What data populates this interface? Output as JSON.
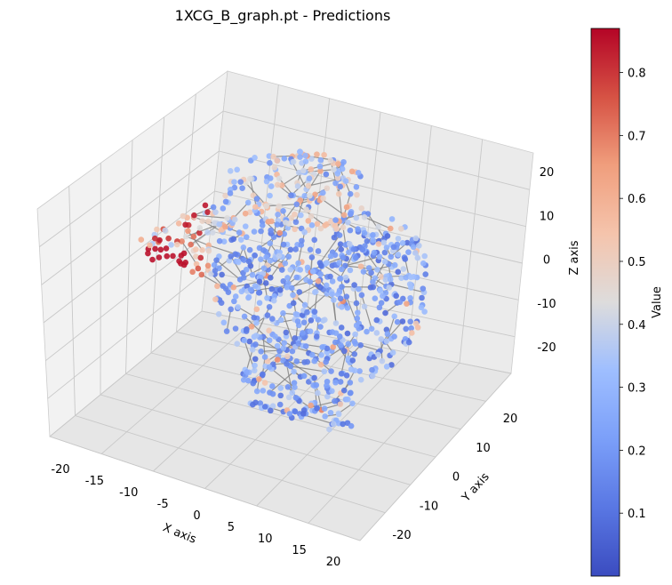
{
  "chart_data": {
    "type": "scatter",
    "projection": "3d",
    "title": "1XCG_B_graph.pt - Predictions",
    "xlabel": "X axis",
    "ylabel": "Y axis",
    "zlabel": "Z axis",
    "xlim": [
      -22,
      22
    ],
    "ylim": [
      -25,
      27
    ],
    "zlim": [
      -27,
      25
    ],
    "x_ticks": [
      "-20",
      "-15",
      "-10",
      "-5",
      "0",
      "5",
      "10",
      "15",
      "20"
    ],
    "y_ticks": [
      "-20",
      "-10",
      "0",
      "10",
      "20"
    ],
    "z_ticks": [
      "-20",
      "-10",
      "0",
      "10",
      "20"
    ],
    "grid": true,
    "edge_color": "#808080",
    "node_colormap": "coolwarm",
    "colorbar": {
      "label": "Value",
      "range": [
        0.0,
        0.87
      ],
      "ticks": [
        "0.1",
        "0.2",
        "0.3",
        "0.4",
        "0.5",
        "0.6",
        "0.7",
        "0.8"
      ],
      "color_low": "#3b4cc0",
      "color_mid": "#dddddd",
      "color_high": "#b40426"
    },
    "value_distribution": {
      "min": 0.0,
      "max": 0.87,
      "note_high_region": "high predicted values (0.5-0.87) concentrated at the left/top lobe of the structure"
    }
  }
}
